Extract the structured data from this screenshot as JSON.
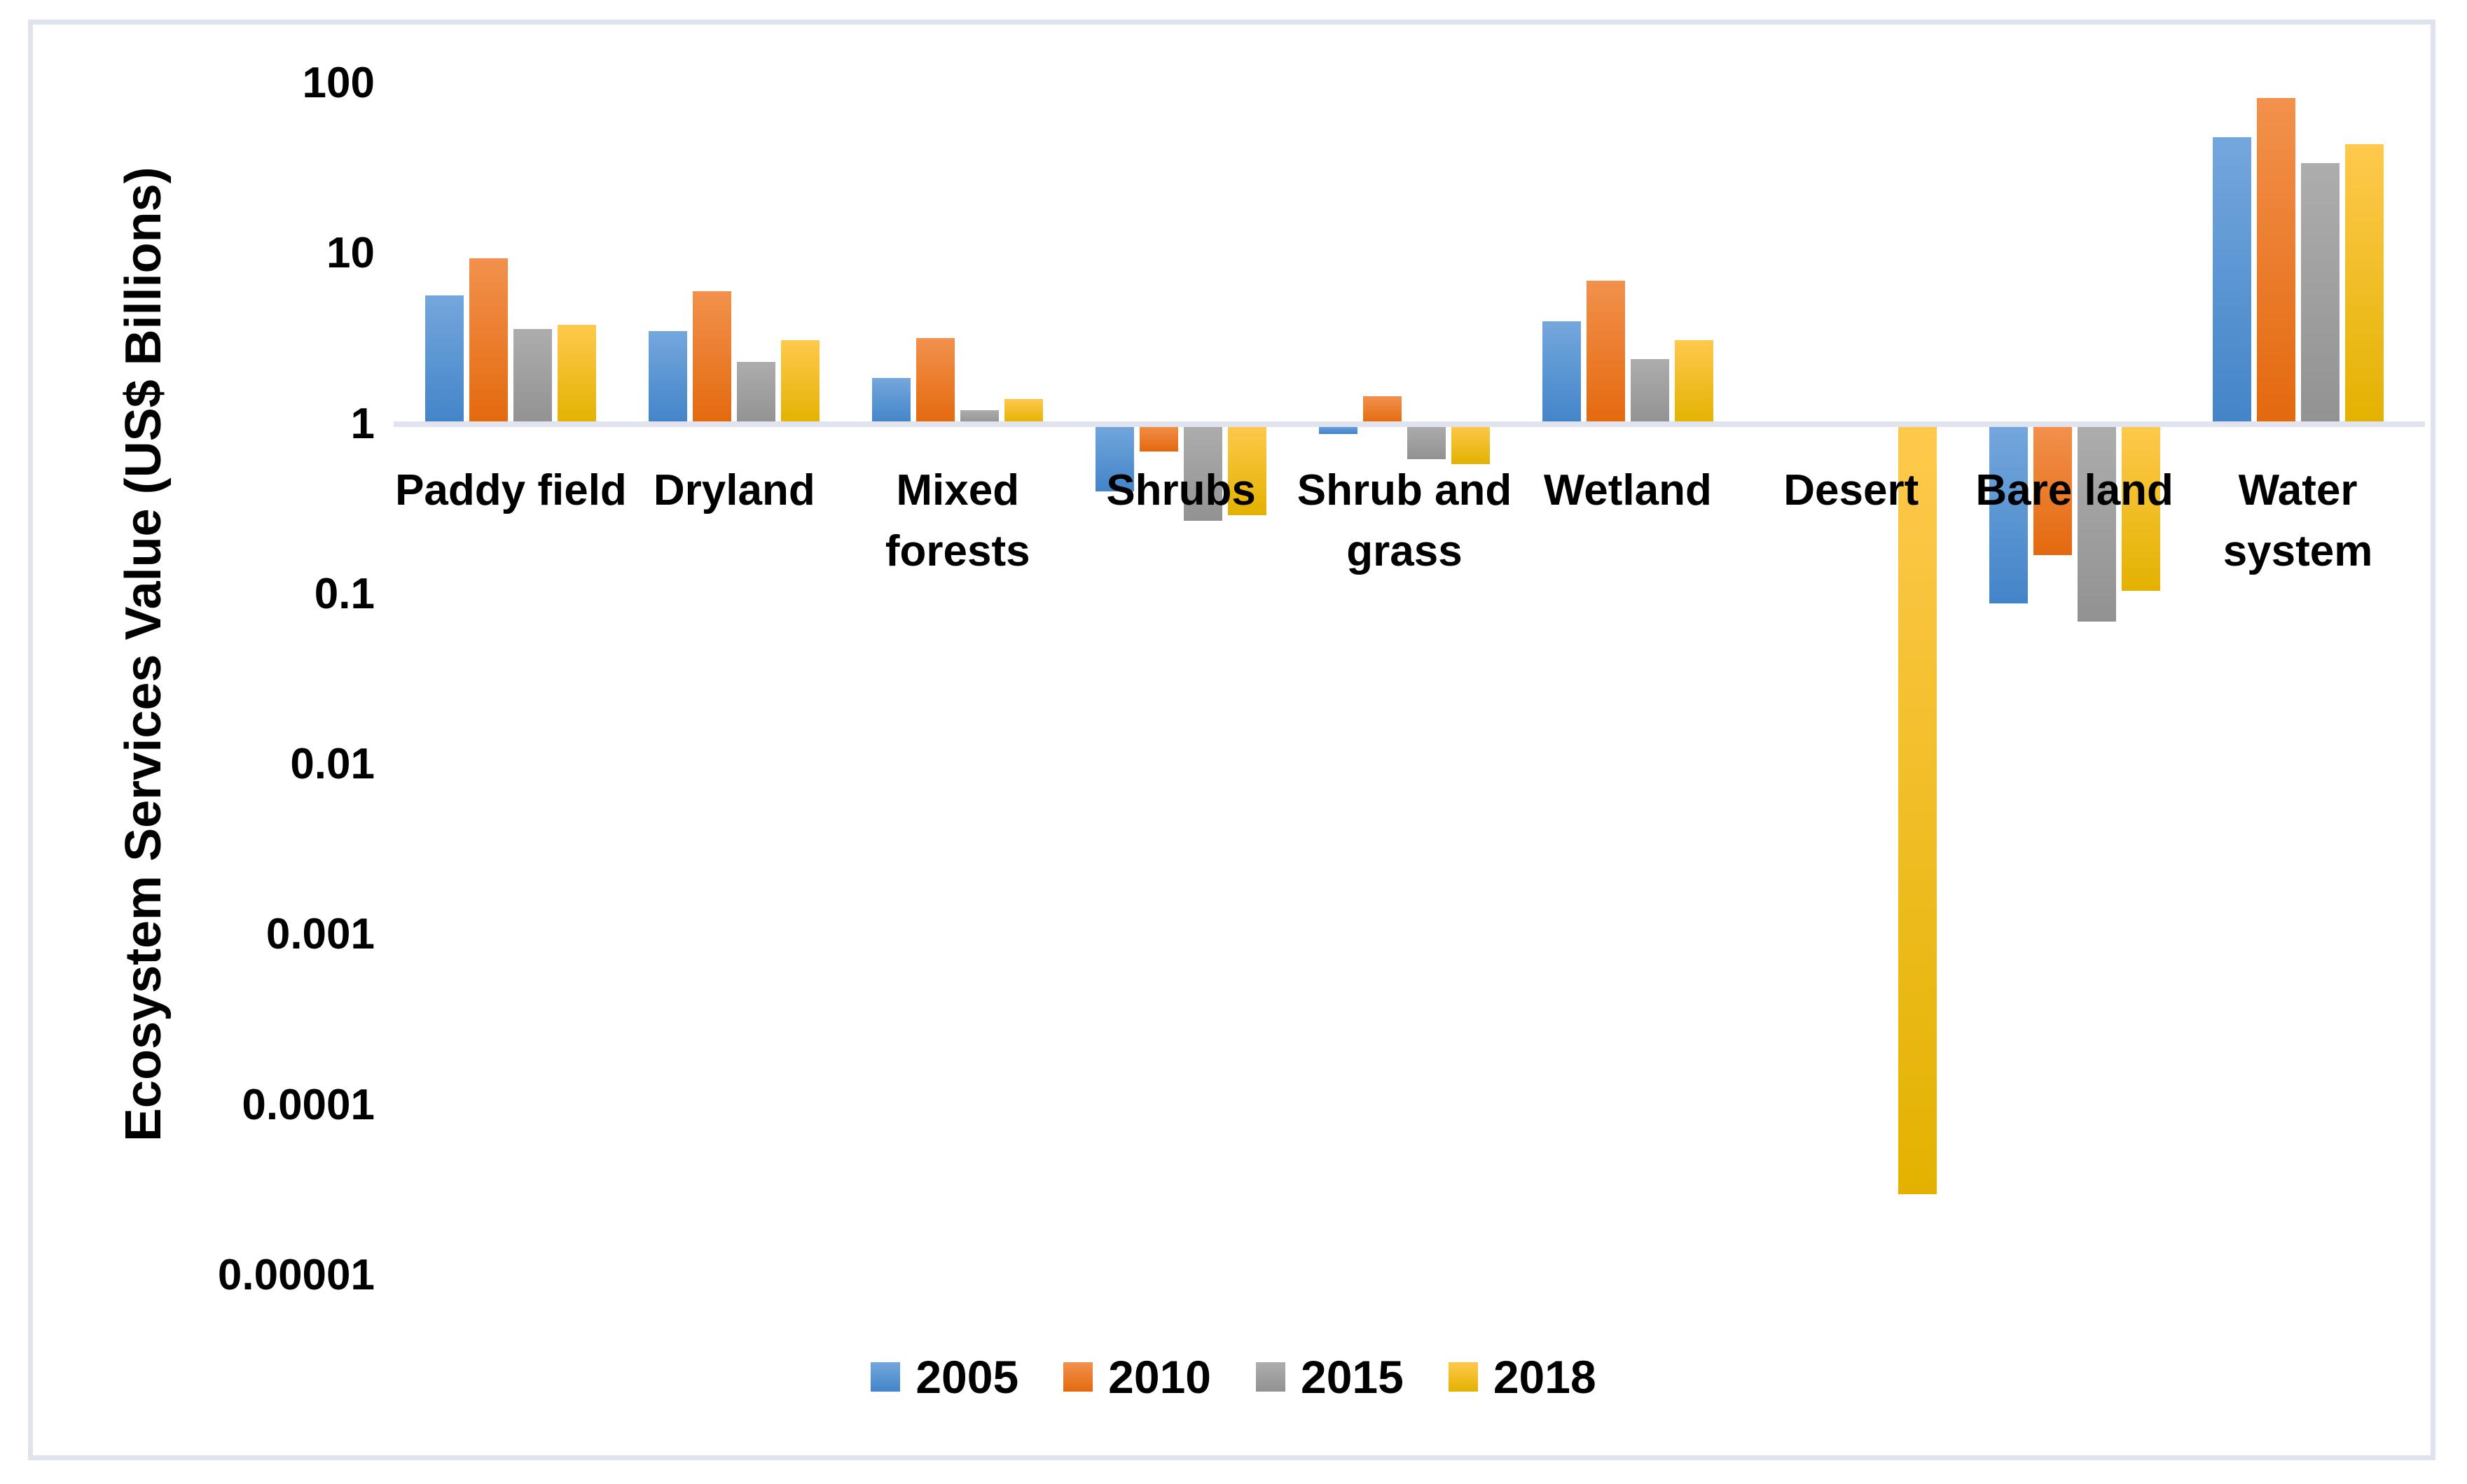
{
  "chart_data": {
    "type": "bar",
    "title": "",
    "xlabel": "",
    "ylabel": "Ecosystem Services Value (US$ Billions)",
    "yscale": "log",
    "ylim": [
      1e-05,
      100
    ],
    "baseline_value": 1,
    "grid": false,
    "yticks": [
      {
        "label": "100",
        "value": 100
      },
      {
        "label": "10",
        "value": 10
      },
      {
        "label": "1",
        "value": 1
      },
      {
        "label": "0.1",
        "value": 0.1
      },
      {
        "label": "0.01",
        "value": 0.01
      },
      {
        "label": "0.001",
        "value": 0.001
      },
      {
        "label": "0.0001",
        "value": 0.0001
      },
      {
        "label": "0.00001",
        "value": 1e-05
      }
    ],
    "categories": [
      "Paddy field",
      "Dryland",
      "Mixed forests",
      "Shrubs",
      "Shrub and grass",
      "Wetland",
      "Desert",
      "Bare land",
      "Water system"
    ],
    "category_display_lines": [
      [
        "Paddy field"
      ],
      [
        "Dryland"
      ],
      [
        "Mixed",
        "forests"
      ],
      [
        "Shrubs"
      ],
      [
        "Shrub and",
        "grass"
      ],
      [
        "Wetland"
      ],
      [
        "Desert"
      ],
      [
        "Bare land"
      ],
      [
        "Water",
        "system"
      ]
    ],
    "series": [
      {
        "name": "2005",
        "color": "#5B9BD5",
        "gradient_top": "#74A7DD",
        "gradient_bottom": "#4384C8",
        "values": [
          5.7,
          3.5,
          1.85,
          0.4,
          0.87,
          4.0,
          null,
          0.088,
          48
        ]
      },
      {
        "name": "2010",
        "color": "#ED7D31",
        "gradient_top": "#F2914D",
        "gradient_bottom": "#E4690E",
        "values": [
          9.4,
          6.0,
          3.2,
          0.69,
          1.46,
          6.9,
          null,
          0.17,
          82
        ]
      },
      {
        "name": "2015",
        "color": "#A5A5A5",
        "gradient_top": "#ADADAD",
        "gradient_bottom": "#929292",
        "values": [
          3.6,
          2.3,
          1.2,
          0.27,
          0.62,
          2.4,
          null,
          0.069,
          34
        ]
      },
      {
        "name": "2018",
        "color": "#FFC000",
        "gradient_top": "#FFC94D",
        "gradient_bottom": "#E3B200",
        "values": [
          3.8,
          3.1,
          1.4,
          0.29,
          0.58,
          3.1,
          3e-05,
          0.105,
          44
        ]
      }
    ],
    "legend": {
      "position": "bottom",
      "entries": [
        "2005",
        "2010",
        "2015",
        "2018"
      ]
    }
  },
  "colors": {
    "background": "#FFFFFF",
    "chart_border": "#DEE3ED",
    "axis_line": "#E0E4EE",
    "text": "#000000"
  }
}
